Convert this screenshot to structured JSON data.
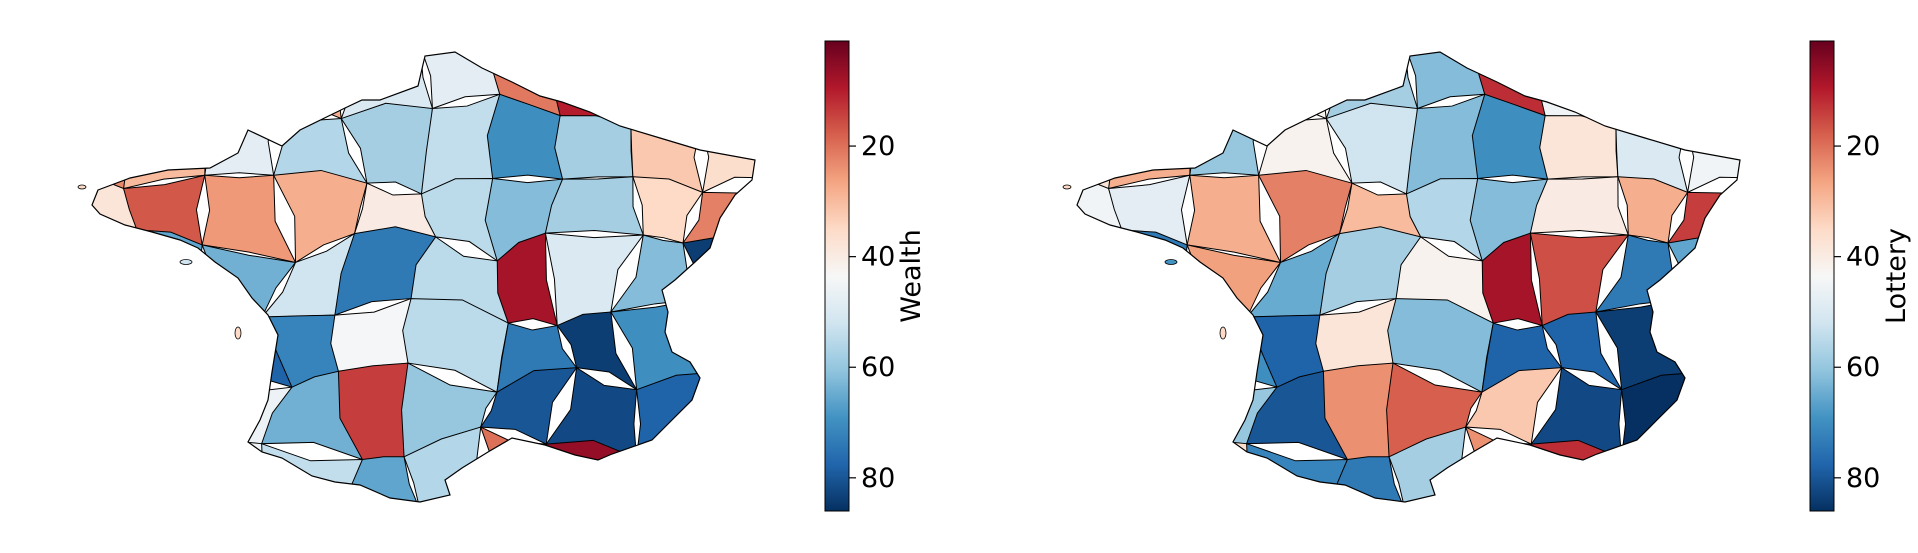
{
  "colors": {
    "stops": [
      "#67001f",
      "#b2182b",
      "#d6604d",
      "#f4a582",
      "#fddbc7",
      "#f7f7f7",
      "#d1e5f0",
      "#92c5de",
      "#4393c3",
      "#2166ac",
      "#053061"
    ],
    "border": "#000000"
  },
  "scale": {
    "min": 1,
    "max": 86,
    "ticks": [
      20,
      40,
      60,
      80
    ]
  },
  "maps": [
    {
      "label": "Wealth",
      "values": [
        5,
        18,
        15,
        28,
        50,
        48,
        21,
        10,
        11,
        22,
        23,
        30,
        48,
        56,
        58,
        54,
        70,
        58,
        32,
        36,
        38,
        17,
        25,
        28,
        40,
        55,
        62,
        58,
        35,
        22,
        60,
        66,
        64,
        52,
        74,
        55,
        8,
        50,
        62,
        84,
        68,
        62,
        78,
        72,
        44,
        55,
        74,
        84,
        70,
        12,
        34,
        26,
        46,
        64,
        14,
        60,
        80,
        82,
        78,
        70,
        58,
        42,
        45,
        54,
        66,
        56,
        20,
        6,
        40,
        75
      ]
    },
    {
      "label": "Lottery",
      "values": [
        8,
        12,
        30,
        42,
        58,
        62,
        12,
        45,
        14,
        34,
        38,
        28,
        60,
        42,
        52,
        62,
        70,
        38,
        50,
        45,
        45,
        48,
        28,
        22,
        30,
        56,
        62,
        40,
        28,
        14,
        18,
        74,
        26,
        65,
        58,
        42,
        8,
        16,
        74,
        66,
        82,
        55,
        70,
        78,
        38,
        62,
        78,
        78,
        84,
        8,
        42,
        72,
        60,
        80,
        24,
        18,
        32,
        82,
        86,
        68,
        70,
        40,
        36,
        72,
        74,
        58,
        24,
        12,
        30,
        80
      ]
    }
  ]
}
